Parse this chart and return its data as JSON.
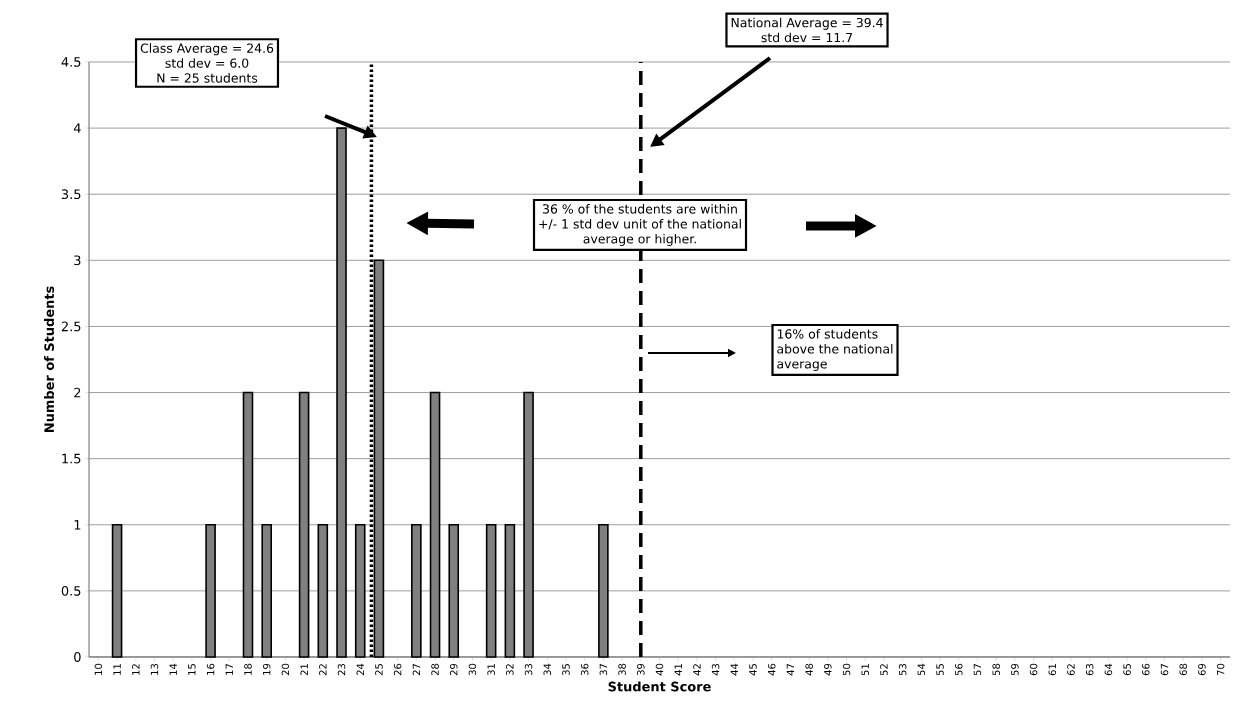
{
  "chart_data": {
    "type": "bar",
    "xlabel": "Student Score",
    "ylabel": "Number of Students",
    "x": [
      11,
      16,
      18,
      19,
      21,
      22,
      23,
      24,
      25,
      27,
      28,
      29,
      31,
      32,
      33,
      37
    ],
    "values": [
      1,
      1,
      2,
      1,
      2,
      1,
      4,
      1,
      3,
      1,
      2,
      1,
      1,
      1,
      2,
      1
    ],
    "color": "#808080",
    "xlim": [
      9.5,
      70.5
    ],
    "xticks": [
      10,
      11,
      12,
      13,
      14,
      15,
      16,
      17,
      18,
      19,
      20,
      21,
      22,
      23,
      24,
      25,
      26,
      27,
      28,
      29,
      30,
      31,
      32,
      33,
      34,
      35,
      36,
      37,
      38,
      39,
      40,
      41,
      42,
      43,
      44,
      45,
      46,
      47,
      48,
      49,
      50,
      51,
      52,
      53,
      54,
      55,
      56,
      57,
      58,
      59,
      60,
      61,
      62,
      63,
      64,
      65,
      66,
      67,
      68,
      69,
      70
    ],
    "ylim": [
      0,
      4.5
    ],
    "yticks": [
      0,
      0.5,
      1,
      1.5,
      2,
      2.5,
      3,
      3.5,
      4,
      4.5
    ],
    "grid": "y",
    "ref_lines": [
      {
        "axis": "x",
        "value": 24.6,
        "line_style": "dotted",
        "color": "#000000"
      },
      {
        "axis": "x",
        "value": 39,
        "line_style": "dashed",
        "color": "#000000"
      }
    ],
    "annotations": [
      "Class Average = 24.6",
      "std dev = 6.0",
      "N = 25 students",
      "National Average = 39.4",
      "std dev = 11.7",
      "36 % of the students are within",
      "+/- 1 std dev unit of the national",
      "average or higher.",
      "16% of students",
      "above the national",
      "average"
    ]
  }
}
